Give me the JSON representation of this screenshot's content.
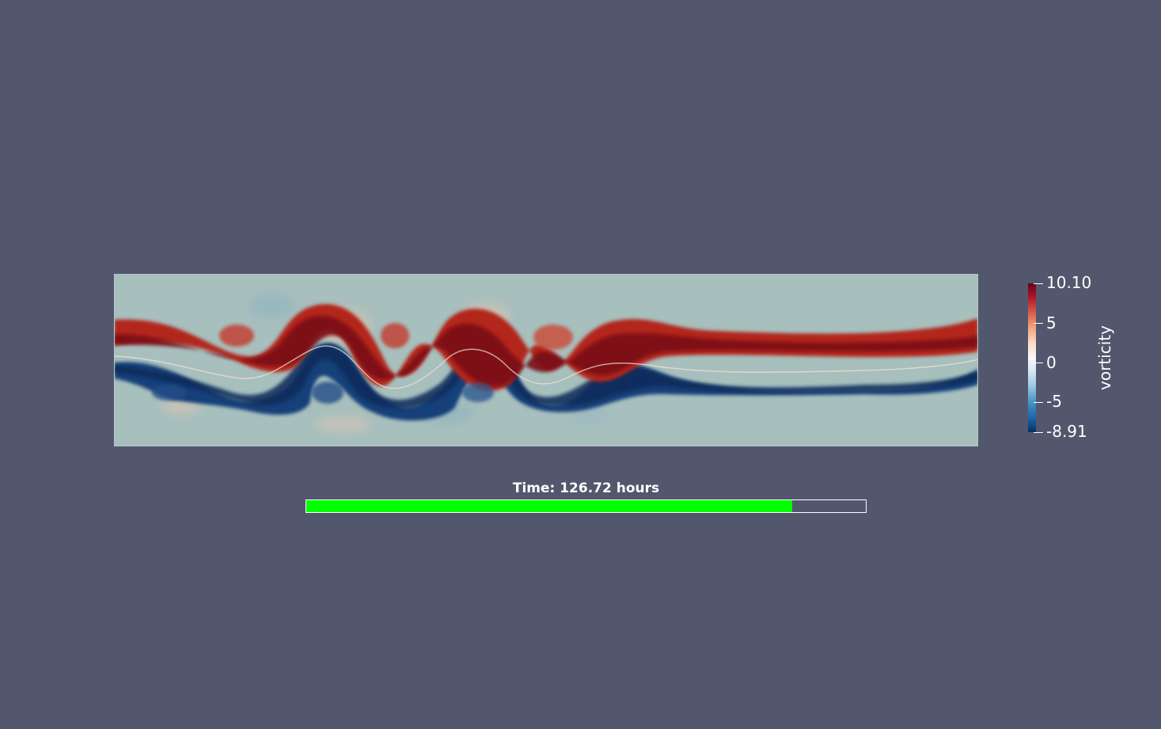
{
  "view": {
    "background": "#52576e"
  },
  "field": {
    "name": "vorticity",
    "background_color": "#a8c0be"
  },
  "color_legend": {
    "title": "vorticity",
    "colormap": [
      "#67001f",
      "#b2182b",
      "#d6604d",
      "#f4a582",
      "#fddbc7",
      "#f7f7f7",
      "#d1e5f0",
      "#92c5de",
      "#4393c3",
      "#2166ac",
      "#053061"
    ],
    "range_max": 10.1,
    "range_min": -8.91,
    "labels": {
      "max": "10.10",
      "t5": "5",
      "t0": "0",
      "tm5": "-5",
      "min": "-8.91"
    },
    "tick_values": [
      10.1,
      5,
      0,
      -5,
      -8.91
    ]
  },
  "time_annotation": {
    "label": "Time: 126.72 hours",
    "progress_fraction": 0.868,
    "progress_color": "#00ff00"
  }
}
